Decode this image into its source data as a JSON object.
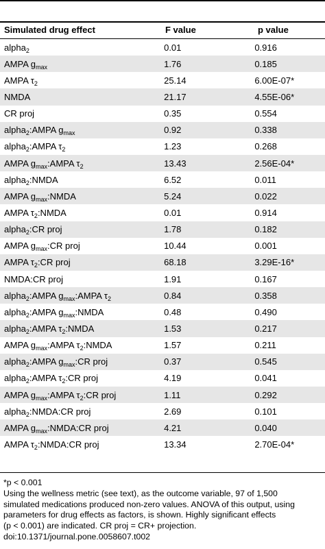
{
  "columns": [
    "Simulated drug effect",
    "F value",
    "p value"
  ],
  "rows": [
    {
      "effect": "alpha<sub>2</sub>",
      "f": "0.01",
      "p": "0.916"
    },
    {
      "effect": "AMPA g<sub>max</sub>",
      "f": "1.76",
      "p": "0.185"
    },
    {
      "effect": "AMPA τ<sub>2</sub>",
      "f": "25.14",
      "p": "6.00E-07*"
    },
    {
      "effect": "NMDA",
      "f": "21.17",
      "p": "4.55E-06*"
    },
    {
      "effect": "CR proj",
      "f": "0.35",
      "p": "0.554"
    },
    {
      "effect": "alpha<sub>2</sub>:AMPA g<sub>max</sub>",
      "f": "0.92",
      "p": "0.338"
    },
    {
      "effect": "alpha<sub>2</sub>:AMPA τ<sub>2</sub>",
      "f": "1.23",
      "p": "0.268"
    },
    {
      "effect": "AMPA g<sub>max</sub>:AMPA τ<sub>2</sub>",
      "f": "13.43",
      "p": "2.56E-04*"
    },
    {
      "effect": "alpha<sub>2</sub>:NMDA",
      "f": "6.52",
      "p": "0.011"
    },
    {
      "effect": "AMPA g<sub>max</sub>:NMDA",
      "f": "5.24",
      "p": "0.022"
    },
    {
      "effect": "AMPA τ<sub>2</sub>:NMDA",
      "f": "0.01",
      "p": "0.914"
    },
    {
      "effect": "alpha<sub>2</sub>:CR proj",
      "f": "1.78",
      "p": "0.182"
    },
    {
      "effect": "AMPA g<sub>max</sub>:CR proj",
      "f": "10.44",
      "p": "0.001"
    },
    {
      "effect": "AMPA τ<sub>2</sub>:CR proj",
      "f": "68.18",
      "p": "3.29E-16*"
    },
    {
      "effect": "NMDA:CR proj",
      "f": "1.91",
      "p": "0.167"
    },
    {
      "effect": "alpha<sub>2</sub>:AMPA g<sub>max</sub>:AMPA τ<sub>2</sub>",
      "f": "0.84",
      "p": "0.358"
    },
    {
      "effect": "alpha<sub>2</sub>:AMPA g<sub>max</sub>:NMDA",
      "f": "0.48",
      "p": "0.490"
    },
    {
      "effect": "alpha<sub>2</sub>:AMPA τ<sub>2</sub>:NMDA",
      "f": "1.53",
      "p": "0.217"
    },
    {
      "effect": "AMPA g<sub>max</sub>:AMPA τ<sub>2</sub>:NMDA",
      "f": "1.57",
      "p": "0.211"
    },
    {
      "effect": "alpha<sub>2</sub>:AMPA g<sub>max</sub>:CR proj",
      "f": "0.37",
      "p": "0.545"
    },
    {
      "effect": "alpha<sub>2</sub>:AMPA τ<sub>2</sub>:CR proj",
      "f": "4.19",
      "p": "0.041"
    },
    {
      "effect": "AMPA g<sub>max</sub>:AMPA τ<sub>2</sub>:CR proj",
      "f": "1.11",
      "p": "0.292"
    },
    {
      "effect": "alpha<sub>2</sub>:NMDA:CR proj",
      "f": "2.69",
      "p": "0.101"
    },
    {
      "effect": "AMPA g<sub>max</sub>:NMDA:CR proj",
      "f": "4.21",
      "p": "0.040"
    },
    {
      "effect": "AMPA τ<sub>2</sub>:NMDA:CR proj",
      "f": "13.34",
      "p": "2.70E-04*"
    }
  ],
  "footnotes": [
    "*p < 0.001",
    "Using the wellness metric (see text), as the outcome variable, 97 of 1,500",
    "simulated medications produced non-zero values. ANOVA of this output, using",
    "parameters for drug effects as factors, is shown. Highly significant effects",
    "(p < 0.001) are indicated. CR proj = CR+ projection.",
    "doi:10.1371/journal.pone.0058607.t002"
  ]
}
